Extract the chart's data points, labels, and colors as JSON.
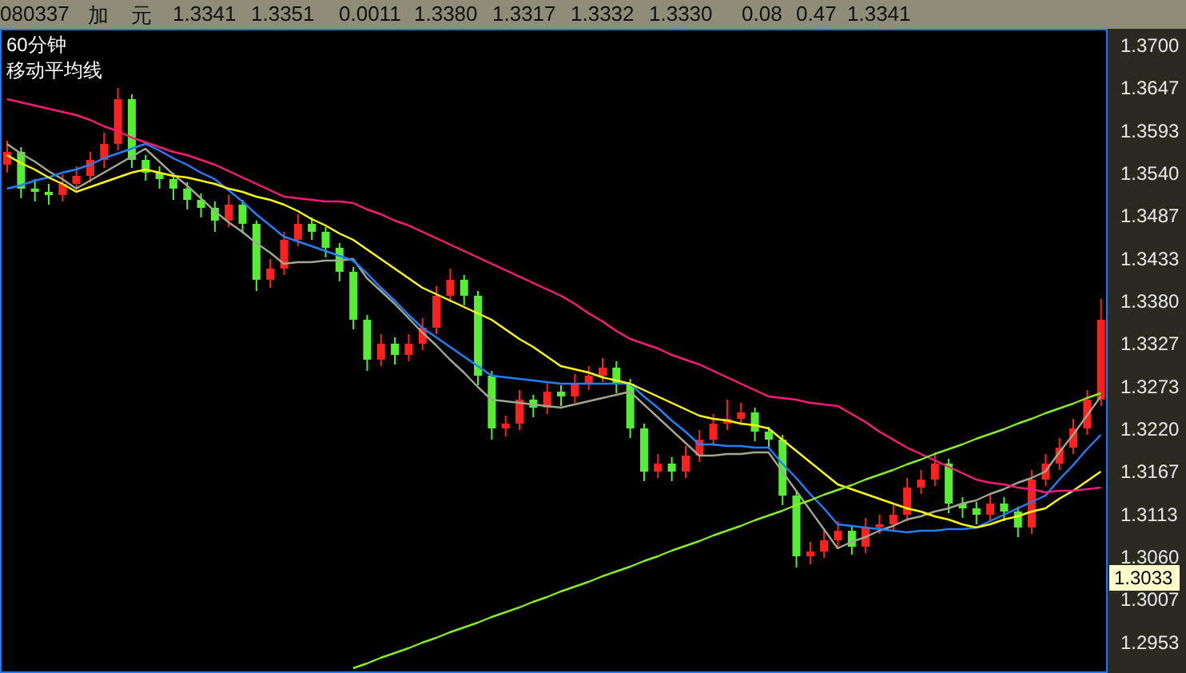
{
  "chart_data": {
    "type": "candlestick",
    "title": "60分钟",
    "subtitle": "移动平均线",
    "annotations": [
      "080337",
      "加",
      "元",
      "1.3341",
      "1.3351",
      "0.0011",
      "1.3380",
      "1.3317",
      "1.3332",
      "1.3330",
      "0.08",
      "0.47",
      "1.3341",
      {
        "text": "1.3033",
        "y": 1.3033
      }
    ],
    "categories": [
      null,
      null,
      null,
      null,
      null,
      null,
      null,
      null,
      null,
      null,
      null,
      null,
      null,
      null,
      null,
      null,
      null,
      null,
      null,
      null,
      null,
      null,
      null,
      null,
      null,
      null,
      null,
      null,
      null,
      null,
      null,
      null,
      null,
      null,
      null,
      null,
      null,
      null,
      null,
      null,
      null,
      null,
      null,
      null,
      null,
      null,
      null,
      null,
      null,
      null,
      null,
      null,
      null,
      null,
      null,
      null,
      null,
      null,
      null,
      null,
      null,
      null,
      null,
      null,
      null,
      null,
      null,
      null,
      null,
      null,
      null,
      null,
      null,
      null,
      null,
      null,
      null,
      null,
      null,
      null
    ],
    "ohlc": [
      [
        1.355,
        1.358,
        1.354,
        1.3566
      ],
      [
        1.3566,
        1.3572,
        1.3508,
        1.352
      ],
      [
        1.352,
        1.3532,
        1.3504,
        1.3516
      ],
      [
        1.3516,
        1.3526,
        1.35,
        1.3512
      ],
      [
        1.3512,
        1.3538,
        1.3504,
        1.3526
      ],
      [
        1.3526,
        1.3548,
        1.3518,
        1.3536
      ],
      [
        1.3536,
        1.3566,
        1.3528,
        1.3556
      ],
      [
        1.3556,
        1.359,
        1.3546,
        1.3576
      ],
      [
        1.3576,
        1.3646,
        1.3568,
        1.3632
      ],
      [
        1.3632,
        1.3638,
        1.3546,
        1.3556
      ],
      [
        1.3556,
        1.3562,
        1.353,
        1.354
      ],
      [
        1.354,
        1.3548,
        1.352,
        1.3532
      ],
      [
        1.3532,
        1.354,
        1.3506,
        1.352
      ],
      [
        1.352,
        1.3528,
        1.3494,
        1.3506
      ],
      [
        1.3506,
        1.3514,
        1.3484,
        1.3496
      ],
      [
        1.3496,
        1.3504,
        1.3466,
        1.348
      ],
      [
        1.348,
        1.3512,
        1.3472,
        1.35
      ],
      [
        1.35,
        1.3506,
        1.3464,
        1.3476
      ],
      [
        1.3476,
        1.348,
        1.3392,
        1.3406
      ],
      [
        1.3406,
        1.3432,
        1.3396,
        1.342
      ],
      [
        1.342,
        1.3466,
        1.3412,
        1.3456
      ],
      [
        1.3456,
        1.3488,
        1.3448,
        1.3476
      ],
      [
        1.3476,
        1.3484,
        1.3456,
        1.3466
      ],
      [
        1.3466,
        1.3472,
        1.3434,
        1.3446
      ],
      [
        1.3446,
        1.3452,
        1.3404,
        1.3416
      ],
      [
        1.3416,
        1.3422,
        1.3344,
        1.3356
      ],
      [
        1.3356,
        1.3362,
        1.3292,
        1.3306
      ],
      [
        1.3306,
        1.3338,
        1.3298,
        1.3326
      ],
      [
        1.3326,
        1.3334,
        1.33,
        1.3312
      ],
      [
        1.3312,
        1.3338,
        1.3304,
        1.3326
      ],
      [
        1.3326,
        1.3358,
        1.3318,
        1.3346
      ],
      [
        1.3346,
        1.3398,
        1.3338,
        1.3386
      ],
      [
        1.3386,
        1.342,
        1.3378,
        1.3406
      ],
      [
        1.3406,
        1.3412,
        1.3374,
        1.3386
      ],
      [
        1.3386,
        1.3392,
        1.3274,
        1.3286
      ],
      [
        1.3286,
        1.3292,
        1.3206,
        1.322
      ],
      [
        1.322,
        1.3236,
        1.321,
        1.3226
      ],
      [
        1.3226,
        1.3268,
        1.3218,
        1.3256
      ],
      [
        1.3256,
        1.3262,
        1.3234,
        1.3246
      ],
      [
        1.3246,
        1.3278,
        1.3238,
        1.3266
      ],
      [
        1.3266,
        1.3274,
        1.3248,
        1.326
      ],
      [
        1.326,
        1.3288,
        1.3252,
        1.3276
      ],
      [
        1.3276,
        1.3298,
        1.3268,
        1.3286
      ],
      [
        1.3286,
        1.3308,
        1.3278,
        1.3296
      ],
      [
        1.3296,
        1.3304,
        1.3264,
        1.3276
      ],
      [
        1.3276,
        1.3282,
        1.3208,
        1.322
      ],
      [
        1.322,
        1.3226,
        1.3154,
        1.3166
      ],
      [
        1.3166,
        1.3188,
        1.3158,
        1.3176
      ],
      [
        1.3176,
        1.3184,
        1.3154,
        1.3166
      ],
      [
        1.3166,
        1.3198,
        1.3158,
        1.3186
      ],
      [
        1.3186,
        1.3218,
        1.3178,
        1.3206
      ],
      [
        1.3206,
        1.3238,
        1.3198,
        1.3226
      ],
      [
        1.3226,
        1.3256,
        1.3218,
        1.3232
      ],
      [
        1.3232,
        1.3252,
        1.3224,
        1.324
      ],
      [
        1.324,
        1.3246,
        1.3204,
        1.3216
      ],
      [
        1.3216,
        1.3222,
        1.3194,
        1.3206
      ],
      [
        1.3206,
        1.3212,
        1.3124,
        1.3136
      ],
      [
        1.3136,
        1.3142,
        1.3046,
        1.306
      ],
      [
        1.306,
        1.3078,
        1.305,
        1.3066
      ],
      [
        1.3066,
        1.3092,
        1.3058,
        1.308
      ],
      [
        1.308,
        1.3104,
        1.3072,
        1.3092
      ],
      [
        1.3092,
        1.3098,
        1.3062,
        1.3072
      ],
      [
        1.3072,
        1.3108,
        1.3064,
        1.3096
      ],
      [
        1.3096,
        1.3112,
        1.3088,
        1.31
      ],
      [
        1.31,
        1.3124,
        1.3092,
        1.3112
      ],
      [
        1.3112,
        1.3158,
        1.3104,
        1.3146
      ],
      [
        1.3146,
        1.3168,
        1.3138,
        1.3156
      ],
      [
        1.3156,
        1.319,
        1.3148,
        1.3176
      ],
      [
        1.3176,
        1.3182,
        1.3114,
        1.3126
      ],
      [
        1.3126,
        1.3134,
        1.3108,
        1.312
      ],
      [
        1.312,
        1.3128,
        1.31,
        1.3112
      ],
      [
        1.3112,
        1.3138,
        1.3104,
        1.3126
      ],
      [
        1.3126,
        1.3134,
        1.3104,
        1.3116
      ],
      [
        1.3116,
        1.3122,
        1.3084,
        1.3096
      ],
      [
        1.3096,
        1.3168,
        1.3088,
        1.3156
      ],
      [
        1.3156,
        1.3188,
        1.3148,
        1.3176
      ],
      [
        1.3176,
        1.3208,
        1.3168,
        1.3196
      ],
      [
        1.3196,
        1.3232,
        1.3188,
        1.322
      ],
      [
        1.322,
        1.3268,
        1.3212,
        1.3256
      ],
      [
        1.3256,
        1.3382,
        1.3248,
        1.3356
      ]
    ],
    "colors": [
      "#ff2020",
      "#55ee33",
      "#55ee33",
      "#55ee33",
      "#ff2020",
      "#ff2020",
      "#ff2020",
      "#ff2020",
      "#ff2020",
      "#55ee33",
      "#55ee33",
      "#55ee33",
      "#55ee33",
      "#55ee33",
      "#55ee33",
      "#55ee33",
      "#ff2020",
      "#55ee33",
      "#55ee33",
      "#ff2020",
      "#ff2020",
      "#ff2020",
      "#55ee33",
      "#55ee33",
      "#55ee33",
      "#55ee33",
      "#55ee33",
      "#ff2020",
      "#55ee33",
      "#ff2020",
      "#ff2020",
      "#ff2020",
      "#ff2020",
      "#55ee33",
      "#55ee33",
      "#55ee33",
      "#ff2020",
      "#ff2020",
      "#55ee33",
      "#ff2020",
      "#55ee33",
      "#ff2020",
      "#ff2020",
      "#ff2020",
      "#55ee33",
      "#55ee33",
      "#55ee33",
      "#ff2020",
      "#55ee33",
      "#ff2020",
      "#ff2020",
      "#ff2020",
      "#ff2020",
      "#ff2020",
      "#55ee33",
      "#55ee33",
      "#55ee33",
      "#55ee33",
      "#ff2020",
      "#ff2020",
      "#ff2020",
      "#55ee33",
      "#ff2020",
      "#ff2020",
      "#ff2020",
      "#ff2020",
      "#ff2020",
      "#ff2020",
      "#55ee33",
      "#55ee33",
      "#55ee33",
      "#ff2020",
      "#55ee33",
      "#55ee33",
      "#ff2020",
      "#ff2020",
      "#ff2020",
      "#ff2020",
      "#ff2020",
      "#ff2020"
    ],
    "series": [
      {
        "type": "line",
        "color": "#a0a890",
        "values": [
          1.3576,
          1.3564,
          1.3554,
          1.3542,
          1.3532,
          1.352,
          1.353,
          1.354,
          1.355,
          1.356,
          1.357,
          1.3554,
          1.3538,
          1.3524,
          1.3508,
          1.3492,
          1.3478,
          1.3466,
          1.3452,
          1.344,
          1.3426,
          1.3428,
          1.3428,
          1.343,
          1.343,
          1.3432,
          1.3408,
          1.3392,
          1.3376,
          1.3358,
          1.334,
          1.3324,
          1.3306,
          1.329,
          1.3272,
          1.3256,
          1.3254,
          1.3252,
          1.325,
          1.3248,
          1.3246,
          1.325,
          1.3254,
          1.3258,
          1.3262,
          1.3266,
          1.325,
          1.3234,
          1.3218,
          1.3202,
          1.3186,
          1.3186,
          1.3188,
          1.3188,
          1.319,
          1.319,
          1.3166,
          1.3142,
          1.3118,
          1.3094,
          1.307,
          1.3078,
          1.3084,
          1.3092,
          1.3098,
          1.3106,
          1.311,
          1.3116,
          1.312,
          1.3126,
          1.313,
          1.3138,
          1.3144,
          1.3152,
          1.3158,
          1.3166,
          1.319,
          1.3212,
          1.3236,
          1.326
        ]
      },
      {
        "type": "line",
        "color": "#2080ff",
        "values": [
          1.352,
          1.3524,
          1.353,
          1.3534,
          1.354,
          1.3544,
          1.355,
          1.3558,
          1.3564,
          1.357,
          1.3576,
          1.3568,
          1.3558,
          1.355,
          1.354,
          1.3532,
          1.3518,
          1.3504,
          1.3488,
          1.3474,
          1.346,
          1.3454,
          1.3448,
          1.3442,
          1.3436,
          1.343,
          1.3414,
          1.3396,
          1.338,
          1.3362,
          1.3346,
          1.3334,
          1.3322,
          1.331,
          1.3298,
          1.3286,
          1.3284,
          1.3282,
          1.328,
          1.3278,
          1.3276,
          1.3276,
          1.3276,
          1.3276,
          1.3276,
          1.3276,
          1.326,
          1.3246,
          1.323,
          1.3216,
          1.32,
          1.32,
          1.3198,
          1.3198,
          1.3196,
          1.3196,
          1.3176,
          1.3158,
          1.3138,
          1.312,
          1.31,
          1.3098,
          1.3096,
          1.3094,
          1.3092,
          1.309,
          1.3092,
          1.3092,
          1.3094,
          1.3094,
          1.3096,
          1.3104,
          1.3112,
          1.312,
          1.3128,
          1.3136,
          1.3156,
          1.3174,
          1.3194,
          1.3212
        ]
      },
      {
        "type": "line",
        "color": "#ffff00",
        "values": [
          1.3562,
          1.3552,
          1.3544,
          1.3534,
          1.3526,
          1.3516,
          1.3522,
          1.3528,
          1.3534,
          1.354,
          1.3544,
          1.354,
          1.3536,
          1.3534,
          1.353,
          1.3526,
          1.352,
          1.3516,
          1.351,
          1.3506,
          1.35,
          1.3492,
          1.3482,
          1.3474,
          1.3464,
          1.3456,
          1.3444,
          1.3432,
          1.342,
          1.3408,
          1.3396,
          1.3388,
          1.338,
          1.3372,
          1.3364,
          1.3356,
          1.3344,
          1.3332,
          1.3322,
          1.331,
          1.3298,
          1.3294,
          1.329,
          1.3284,
          1.328,
          1.3276,
          1.3268,
          1.326,
          1.3252,
          1.3244,
          1.3236,
          1.3232,
          1.323,
          1.3226,
          1.3224,
          1.322,
          1.3206,
          1.3192,
          1.3178,
          1.3164,
          1.315,
          1.3144,
          1.3138,
          1.3132,
          1.3126,
          1.312,
          1.3116,
          1.311,
          1.3106,
          1.31,
          1.3096,
          1.31,
          1.3106,
          1.311,
          1.3116,
          1.312,
          1.3132,
          1.3142,
          1.3154,
          1.3166
        ]
      },
      {
        "type": "line",
        "color": "#ff1a7a",
        "values": [
          1.3632,
          1.3628,
          1.3624,
          1.362,
          1.3616,
          1.3612,
          1.3606,
          1.3598,
          1.3592,
          1.3584,
          1.3578,
          1.3572,
          1.3566,
          1.3562,
          1.3556,
          1.355,
          1.3542,
          1.3534,
          1.3526,
          1.3518,
          1.351,
          1.3508,
          1.3506,
          1.3504,
          1.3504,
          1.3502,
          1.3494,
          1.3488,
          1.348,
          1.3474,
          1.3466,
          1.3458,
          1.345,
          1.3442,
          1.3434,
          1.3426,
          1.3418,
          1.341,
          1.3402,
          1.3394,
          1.3386,
          1.3376,
          1.3364,
          1.3354,
          1.3342,
          1.3332,
          1.3326,
          1.332,
          1.3312,
          1.3306,
          1.33,
          1.3292,
          1.3284,
          1.3276,
          1.3268,
          1.326,
          1.3258,
          1.3256,
          1.3252,
          1.325,
          1.3248,
          1.3238,
          1.3228,
          1.3216,
          1.3206,
          1.3196,
          1.3188,
          1.318,
          1.3172,
          1.3164,
          1.3156,
          1.3152,
          1.315,
          1.3146,
          1.3144,
          1.314,
          1.3142,
          1.3142,
          1.3144,
          1.3146
        ]
      },
      {
        "type": "line",
        "color": "#88ee22",
        "values": [
          null,
          null,
          null,
          null,
          null,
          null,
          null,
          null,
          null,
          null,
          null,
          null,
          null,
          null,
          null,
          null,
          null,
          null,
          null,
          null,
          null,
          null,
          null,
          null,
          null,
          1.292,
          1.2926,
          1.2933,
          1.2939,
          1.2945,
          1.2952,
          1.2958,
          1.2965,
          1.2971,
          1.2977,
          1.2984,
          1.299,
          1.2996,
          1.3003,
          1.3009,
          1.3016,
          1.3022,
          1.3028,
          1.3035,
          1.3041,
          1.3047,
          1.3054,
          1.306,
          1.3067,
          1.3073,
          1.3079,
          1.3086,
          1.3092,
          1.3098,
          1.3105,
          1.3111,
          1.3117,
          1.3124,
          1.313,
          1.3137,
          1.3143,
          1.3149,
          1.3156,
          1.3162,
          1.3168,
          1.3175,
          1.3181,
          1.3188,
          1.3194,
          1.32,
          1.3207,
          1.3213,
          1.3219,
          1.3226,
          1.3232,
          1.3239,
          1.3245,
          1.3251,
          1.3258,
          1.3264
        ]
      }
    ],
    "ylim": [
      1.2914,
      1.372
    ],
    "yticks": [
      {
        "value": 1.37,
        "label": "1.3700"
      },
      {
        "value": 1.3647,
        "label": "1.3647"
      },
      {
        "value": 1.3593,
        "label": "1.3593"
      },
      {
        "value": 1.354,
        "label": "1.3540"
      },
      {
        "value": 1.3487,
        "label": "1.3487"
      },
      {
        "value": 1.3433,
        "label": "1.3433"
      },
      {
        "value": 1.338,
        "label": "1.3380"
      },
      {
        "value": 1.3327,
        "label": "1.3327"
      },
      {
        "value": 1.3273,
        "label": "1.3273"
      },
      {
        "value": 1.322,
        "label": "1.3220"
      },
      {
        "value": 1.3167,
        "label": "1.3167"
      },
      {
        "value": 1.3113,
        "label": "1.3113"
      },
      {
        "value": 1.306,
        "label": "1.3060"
      },
      {
        "value": 1.3007,
        "label": "1.3007"
      },
      {
        "value": 1.2953,
        "label": "1.2953"
      }
    ],
    "tick_labels": "y"
  }
}
